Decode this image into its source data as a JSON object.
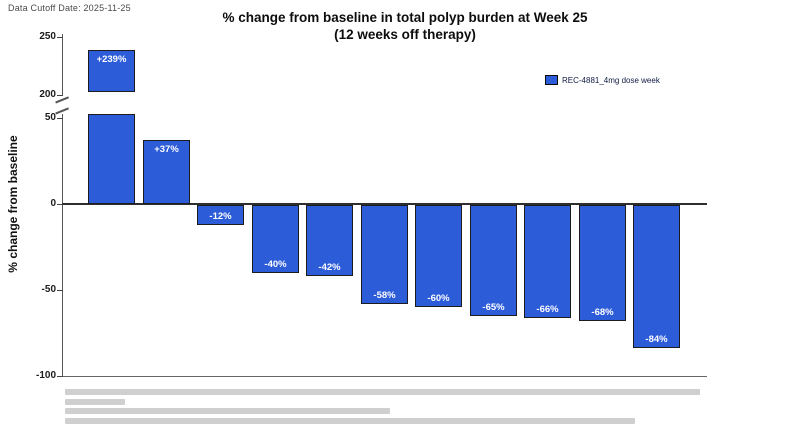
{
  "header": {
    "data_cutoff": "Data Cutoff Date: 2025-11-25"
  },
  "title": {
    "line1": "% change from baseline in total polyp burden at Week 25",
    "line2": "(12 weeks off therapy)"
  },
  "legend": {
    "label": "REC-4881_4mg dose week",
    "swatch_color": "#2d5cd9"
  },
  "y_axis": {
    "title": "% change from baseline",
    "upper_ticks": [
      250,
      200
    ],
    "lower_ticks": [
      50,
      0,
      -50,
      -100
    ]
  },
  "chart_data": {
    "type": "bar",
    "title": "% change from baseline in total polyp burden at Week 25 (12 weeks off therapy)",
    "xlabel": "",
    "ylabel": "% change from baseline",
    "legend_entries": [
      "REC-4881_4mg dose week"
    ],
    "legend_position": "upper right",
    "grid": false,
    "bar_color": "#2d5cd9",
    "axis_break": {
      "lower_section_ylim": [
        -100,
        50
      ],
      "upper_section_ylim": [
        200,
        250
      ]
    },
    "n_bars": 11,
    "series": [
      {
        "name": "REC-4881_4mg dose week",
        "values": [
          239,
          37,
          -12,
          -40,
          -42,
          -58,
          -60,
          -65,
          -66,
          -68,
          -84
        ]
      }
    ],
    "bar_labels": [
      "+239%",
      "+37%",
      "-12%",
      "-40%",
      "-42%",
      "-58%",
      "-60%",
      "-65%",
      "-66%",
      "-68%",
      "-84%"
    ]
  },
  "footnote": {
    "line_count": 4,
    "legible": false
  }
}
